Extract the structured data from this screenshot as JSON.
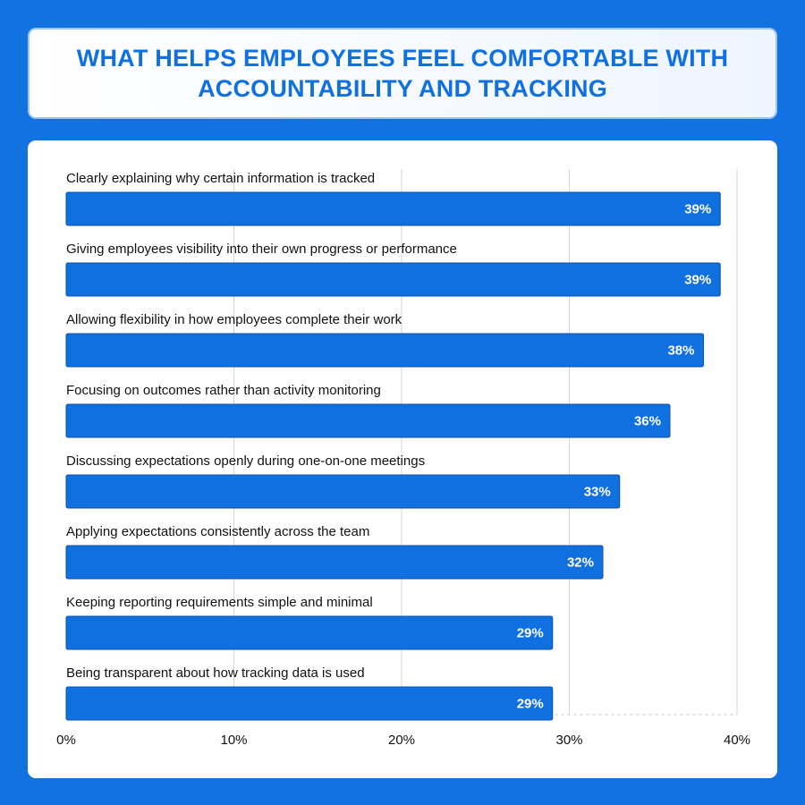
{
  "colors": {
    "background": "#1172e0",
    "bar": "#1170e0",
    "title_text": "#1170e0"
  },
  "chart_data": {
    "type": "bar",
    "orientation": "horizontal",
    "title": "WHAT HELPS EMPLOYEES FEEL COMFORTABLE WITH ACCOUNTABILITY AND TRACKING",
    "xlabel": "",
    "ylabel": "",
    "xlim": [
      0,
      40
    ],
    "ticks": [
      "0%",
      "10%",
      "20%",
      "30%",
      "40%"
    ],
    "tick_values": [
      0,
      10,
      20,
      30,
      40
    ],
    "grid": true,
    "categories": [
      "Clearly explaining why certain information is tracked",
      "Giving employees visibility into their own progress or performance",
      "Allowing flexibility in how employees complete their work",
      "Focusing on outcomes rather than activity monitoring",
      "Discussing expectations openly during one-on-one meetings",
      "Applying expectations consistently across the team",
      "Keeping reporting requirements simple and minimal",
      "Being transparent about how tracking data is used"
    ],
    "values": [
      39,
      39,
      38,
      36,
      33,
      32,
      29,
      29
    ],
    "value_labels": [
      "39%",
      "39%",
      "38%",
      "36%",
      "33%",
      "32%",
      "29%",
      "29%"
    ]
  }
}
